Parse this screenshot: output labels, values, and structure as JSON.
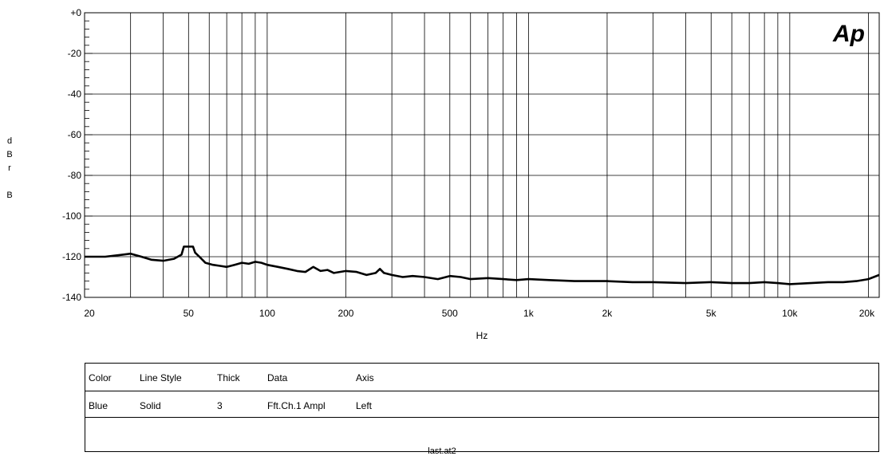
{
  "logo": "Ap",
  "filename": "last.at2",
  "chart_data": {
    "type": "line",
    "title": "",
    "xlabel": "Hz",
    "ylabel": "dBr B",
    "ylabel_letters": [
      "d",
      "B",
      "r",
      "",
      "B"
    ],
    "x_scale": "log",
    "xlim": [
      20,
      22000
    ],
    "ylim": [
      -140,
      0
    ],
    "grid": true,
    "x_ticks": [
      {
        "value": 20,
        "label": "20"
      },
      {
        "value": 50,
        "label": "50"
      },
      {
        "value": 100,
        "label": "100"
      },
      {
        "value": 200,
        "label": "200"
      },
      {
        "value": 500,
        "label": "500"
      },
      {
        "value": 1000,
        "label": "1k"
      },
      {
        "value": 2000,
        "label": "2k"
      },
      {
        "value": 5000,
        "label": "5k"
      },
      {
        "value": 10000,
        "label": "10k"
      },
      {
        "value": 20000,
        "label": "20k"
      }
    ],
    "y_ticks": [
      {
        "value": 0,
        "label": "+0"
      },
      {
        "value": -20,
        "label": "-20"
      },
      {
        "value": -40,
        "label": "-40"
      },
      {
        "value": -60,
        "label": "-60"
      },
      {
        "value": -80,
        "label": "-80"
      },
      {
        "value": -100,
        "label": "-100"
      },
      {
        "value": -120,
        "label": "-120"
      },
      {
        "value": -140,
        "label": "-140"
      }
    ],
    "series": [
      {
        "color": "#000000",
        "x": [
          20,
          24,
          28,
          30,
          33,
          36,
          40,
          44,
          47,
          48,
          50,
          52,
          53,
          55,
          58,
          62,
          66,
          70,
          75,
          80,
          85,
          90,
          95,
          100,
          110,
          120,
          130,
          140,
          150,
          160,
          170,
          180,
          200,
          220,
          240,
          260,
          270,
          280,
          300,
          330,
          360,
          400,
          450,
          500,
          550,
          600,
          700,
          800,
          900,
          1000,
          1200,
          1500,
          2000,
          2500,
          3000,
          4000,
          5000,
          6000,
          7000,
          8000,
          9000,
          10000,
          12000,
          14000,
          16000,
          18000,
          20000,
          22000
        ],
        "y": [
          -120,
          -120,
          -119,
          -118.5,
          -120,
          -121.5,
          -122,
          -121,
          -119,
          -115,
          -115,
          -115,
          -118,
          -120,
          -123,
          -124,
          -124.5,
          -125,
          -124,
          -123,
          -123.5,
          -122.5,
          -123,
          -124,
          -125,
          -126,
          -127,
          -127.5,
          -125,
          -127,
          -126.5,
          -128,
          -127,
          -127.5,
          -129,
          -128,
          -126,
          -128,
          -129,
          -130,
          -129.5,
          -130,
          -131,
          -129.5,
          -130,
          -131,
          -130.5,
          -131,
          -131.5,
          -131,
          -131.5,
          -132,
          -132,
          -132.5,
          -132.5,
          -133,
          -132.5,
          -133,
          -133,
          -132.5,
          -133,
          -133.5,
          -133,
          -132.5,
          -132.5,
          -132,
          -131,
          -129
        ]
      }
    ]
  },
  "legend": {
    "headers": [
      "Color",
      "Line Style",
      "Thick",
      "Data",
      "Axis"
    ],
    "rows": [
      [
        "Blue",
        "Solid",
        "3",
        "Fft.Ch.1 Ampl",
        "Left"
      ]
    ]
  }
}
